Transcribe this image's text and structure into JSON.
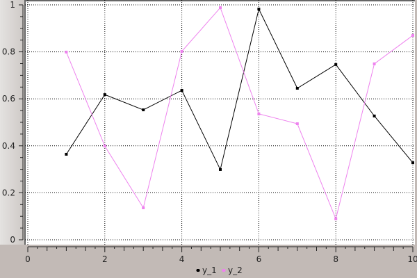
{
  "chart_data": {
    "type": "line",
    "title": "",
    "xlabel": "",
    "ylabel": "",
    "xlim": [
      0,
      10
    ],
    "ylim": [
      0,
      1
    ],
    "x_ticks": [
      "0",
      "2",
      "4",
      "6",
      "8",
      "10"
    ],
    "y_ticks": [
      "0",
      "0.2",
      "0.4",
      "0.6",
      "0.8",
      "1"
    ],
    "grid": true,
    "legend_placement": "bottom",
    "x": [
      1,
      2,
      3,
      4,
      5,
      6,
      7,
      8,
      9,
      10
    ],
    "series": [
      {
        "name": "y_1",
        "color": "#000000",
        "values": [
          0.364,
          0.618,
          0.553,
          0.636,
          0.299,
          0.982,
          0.645,
          0.746,
          0.527,
          0.328
        ]
      },
      {
        "name": "y_2",
        "color": "#ee82ee",
        "values": [
          0.799,
          0.399,
          0.136,
          0.802,
          0.988,
          0.536,
          0.494,
          0.089,
          0.749,
          0.87
        ]
      }
    ]
  }
}
